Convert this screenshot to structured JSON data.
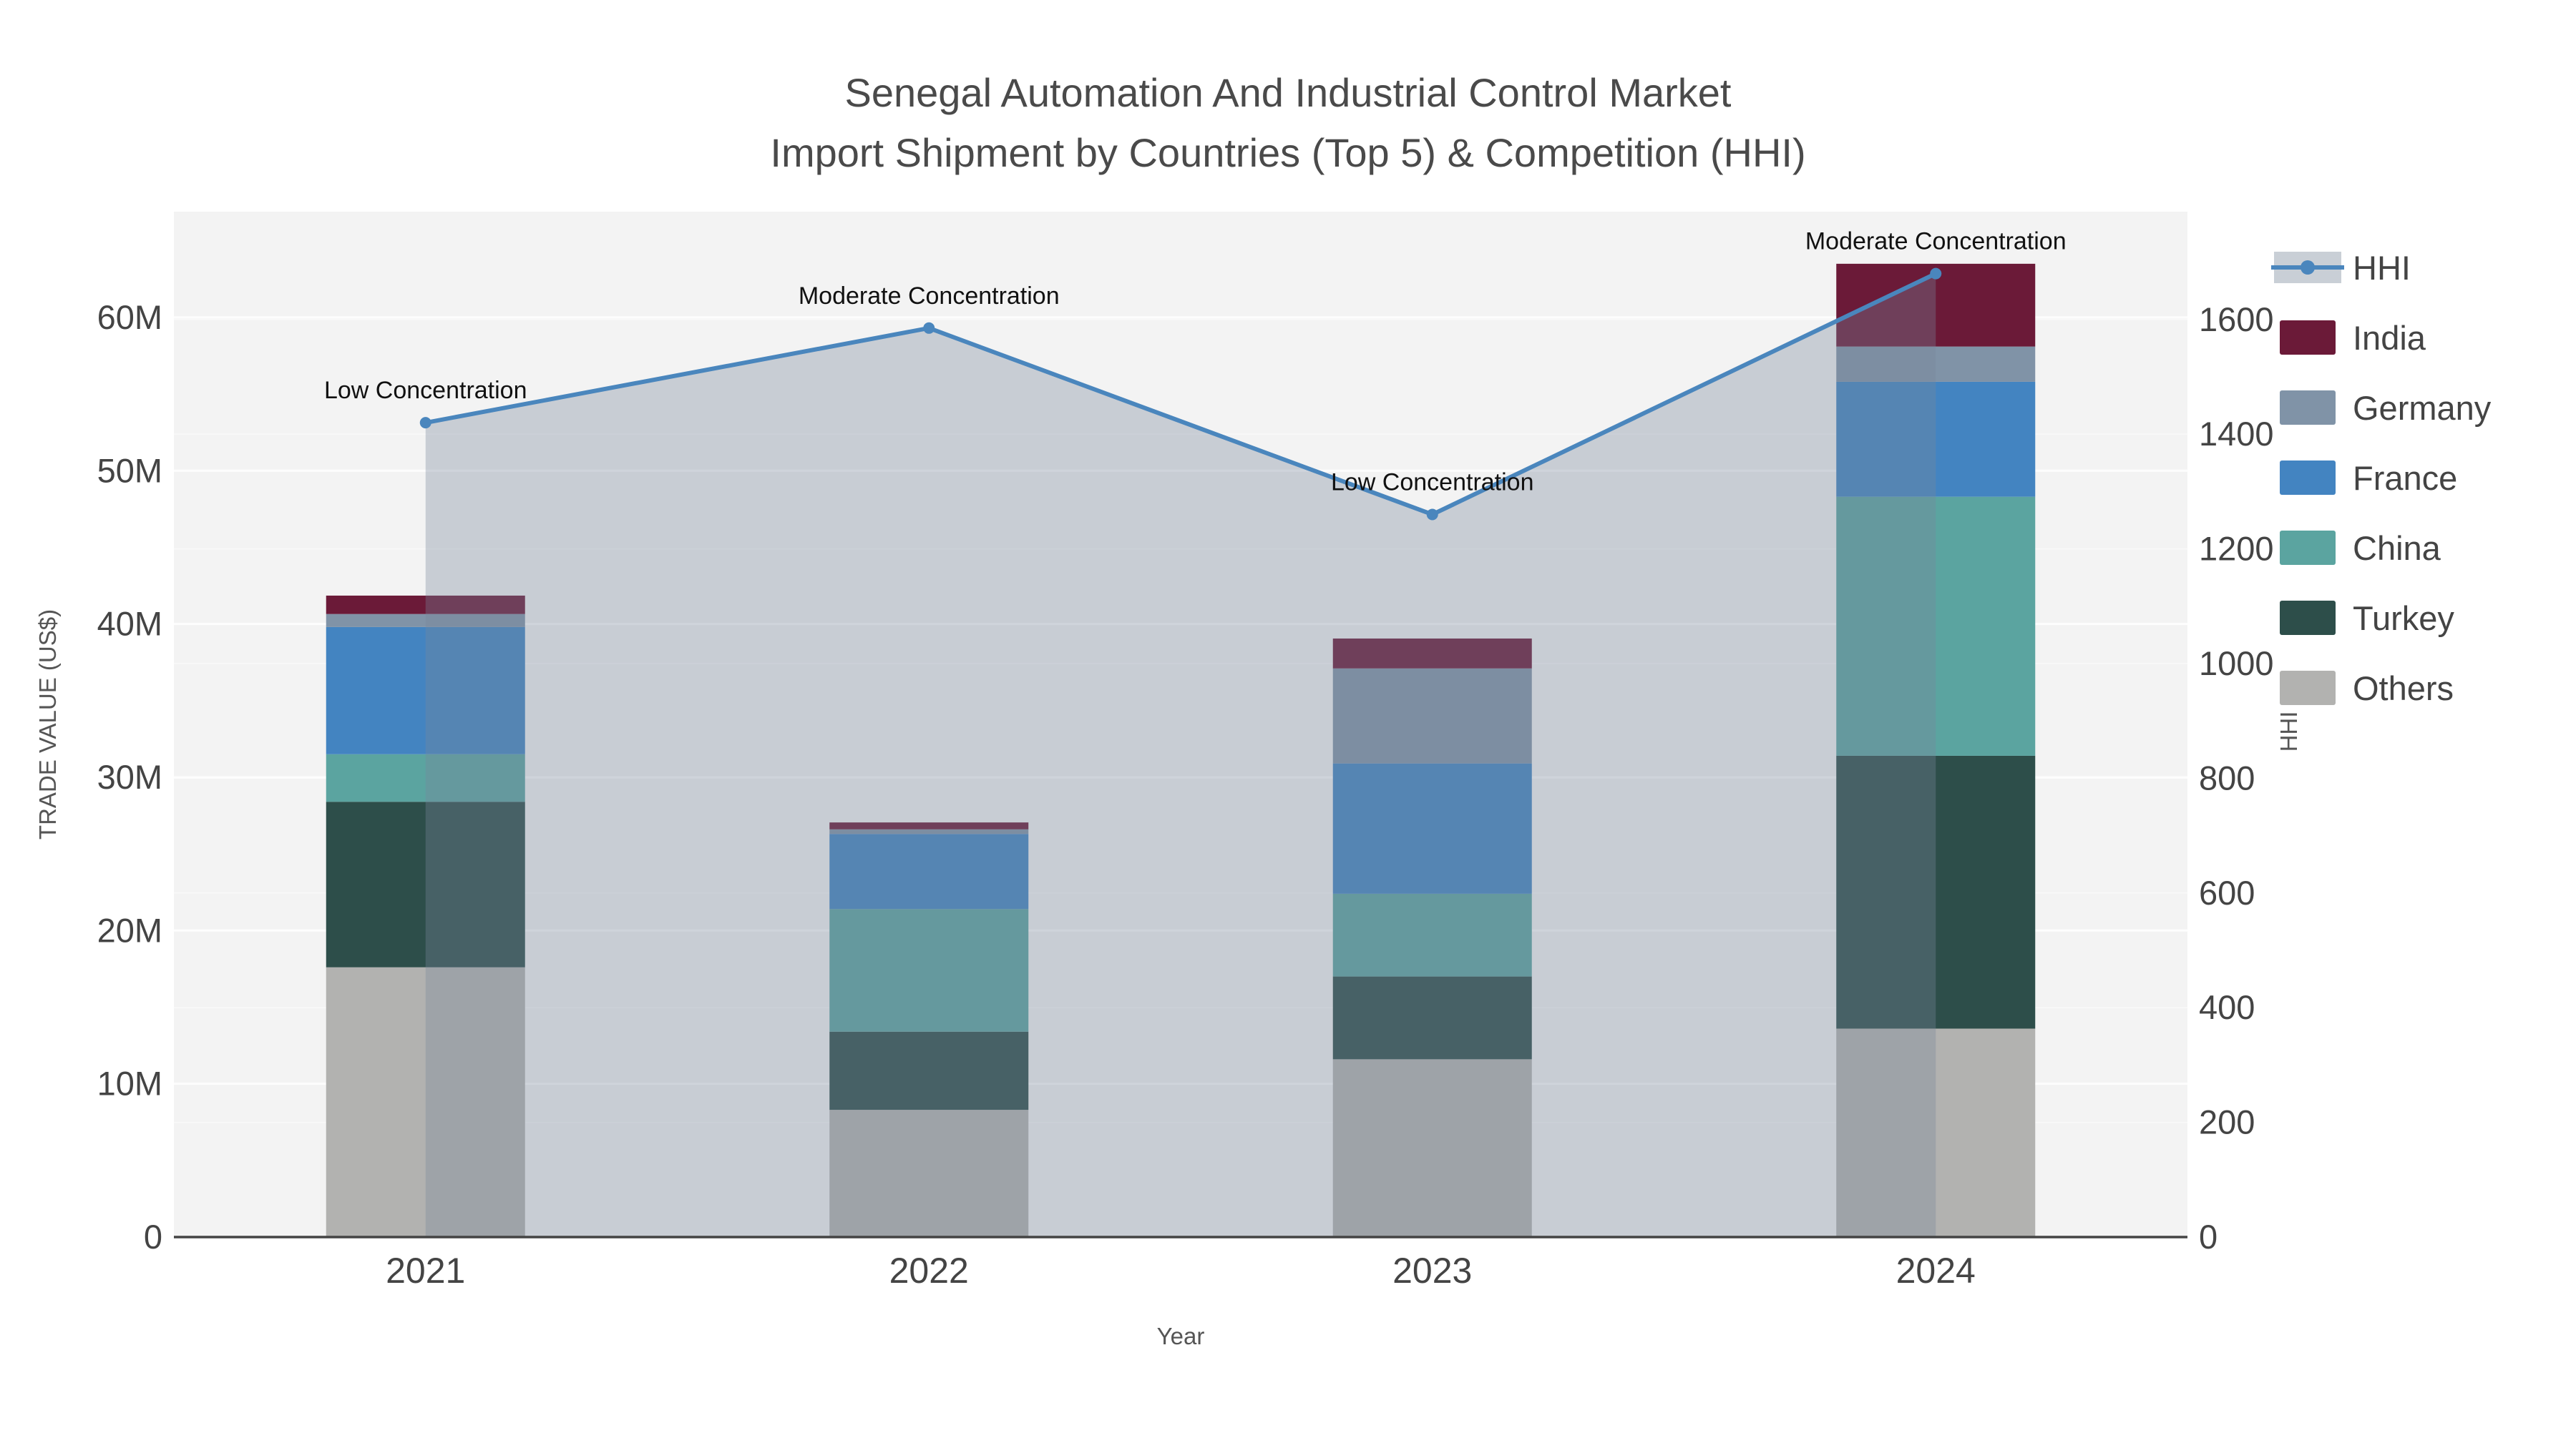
{
  "title": {
    "line1": "Senegal Automation And Industrial Control Market",
    "line2": "Import Shipment by Countries (Top 5) & Competition (HHI)"
  },
  "x_axis": {
    "title": "Year",
    "categories": [
      "2021",
      "2022",
      "2023",
      "2024"
    ]
  },
  "y_left_axis": {
    "title": "TRADE VALUE (US$)",
    "tick_labels": [
      "0",
      "10M",
      "20M",
      "30M",
      "40M",
      "50M",
      "60M"
    ],
    "tick_values_musd": [
      0,
      10,
      20,
      30,
      40,
      50,
      60
    ]
  },
  "y_right_axis": {
    "title": "HHI",
    "tick_labels": [
      "0",
      "200",
      "400",
      "600",
      "800",
      "1000",
      "1200",
      "1400",
      "1600"
    ],
    "tick_values": [
      0,
      200,
      400,
      600,
      800,
      1000,
      1200,
      1400,
      1600
    ]
  },
  "legend": {
    "items": [
      {
        "label": "HHI",
        "type": "line",
        "color": "#4A86BD"
      },
      {
        "label": "India",
        "type": "swatch",
        "color": "#6B1A38"
      },
      {
        "label": "Germany",
        "type": "swatch",
        "color": "#8093A7"
      },
      {
        "label": "France",
        "type": "swatch",
        "color": "#4384C1"
      },
      {
        "label": "China",
        "type": "swatch",
        "color": "#5BA4A0"
      },
      {
        "label": "Turkey",
        "type": "swatch",
        "color": "#2D4E4A"
      },
      {
        "label": "Others",
        "type": "swatch",
        "color": "#B2B2B0"
      }
    ]
  },
  "chart_data": {
    "type": "bar+line",
    "title": "Senegal Automation And Industrial Control Market — Import Shipment by Countries (Top 5) & Competition (HHI)",
    "categories": [
      "2021",
      "2022",
      "2023",
      "2024"
    ],
    "bar_value_unit": "US$",
    "stack_order_bottom_to_top": [
      "Others",
      "Turkey",
      "China",
      "France",
      "Germany",
      "India"
    ],
    "series": [
      {
        "name": "India",
        "type": "bar",
        "color": "#6B1A38",
        "values": [
          1200000,
          450000,
          1950000,
          5400000
        ]
      },
      {
        "name": "Germany",
        "type": "bar",
        "color": "#8093A7",
        "values": [
          850000,
          300000,
          6200000,
          2300000
        ]
      },
      {
        "name": "France",
        "type": "bar",
        "color": "#4384C1",
        "values": [
          8300000,
          4900000,
          8500000,
          7500000
        ]
      },
      {
        "name": "China",
        "type": "bar",
        "color": "#5BA4A0",
        "values": [
          3100000,
          8000000,
          5400000,
          16900000
        ]
      },
      {
        "name": "Turkey",
        "type": "bar",
        "color": "#2D4E4A",
        "values": [
          10800000,
          5100000,
          5400000,
          17800000
        ]
      },
      {
        "name": "Others",
        "type": "bar",
        "color": "#B2B2B0",
        "values": [
          17600000,
          8300000,
          11600000,
          13600000
        ]
      }
    ],
    "bar_totals_usd": [
      41850000,
      27050000,
      39050000,
      63500000
    ],
    "line_series": {
      "name": "HHI",
      "color": "#4A86BD",
      "fill_color": "rgba(120,135,155,0.35)",
      "values": [
        1420,
        1585,
        1260,
        1680
      ],
      "annotations": [
        "Low Concentration",
        "Moderate Concentration",
        "Low Concentration",
        "Moderate Concentration"
      ]
    },
    "xlabel": "Year",
    "ylabel_left": "TRADE VALUE (US$)",
    "ylabel_right": "HHI",
    "ylim_left_musd": [
      0,
      66.9
    ],
    "ylim_right": [
      0,
      1788
    ],
    "grid": true,
    "legend_position": "right",
    "plot_bg": "#f3f3f3",
    "grid_color": "#ffffff",
    "axis_line_color": "#444444",
    "tick_color": "#444444",
    "annotation_color": "#111111"
  }
}
